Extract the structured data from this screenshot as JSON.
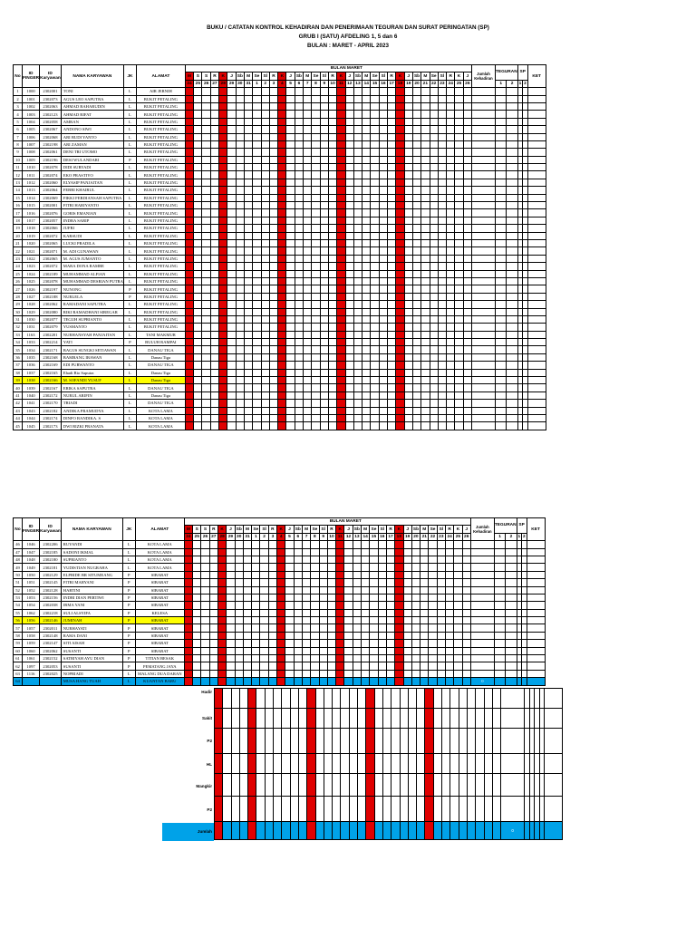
{
  "header": {
    "line1": "BUKU / CATATAN KONTROL KEHADIRAN DAN PENERIMAAN TEGURAN DAN SURAT PERINGATAN (SP)",
    "line2": "GRUB I (SATU) AFDELING 1, 5 dan 6",
    "line3": "BULAN : MARET - APRIL 2023"
  },
  "columns": {
    "no": "No",
    "id_finger": "ID FINGER",
    "id_karyawan": "ID Karyawan",
    "nama": "NAMA KARYAWAN",
    "jk": "JK",
    "alamat": "ALAMAT",
    "bulan": "BULAN MARET",
    "jumlah": "Jumlah Kehadiran",
    "teguran": "TEGURAN",
    "sp": "SP",
    "ket": "KET",
    "teguran_nums": [
      "1",
      "2"
    ],
    "sp_nums": [
      "1",
      "2"
    ]
  },
  "days": [
    "M",
    "S",
    "S",
    "R",
    "K",
    "J",
    "Sb",
    "M",
    "Se",
    "Sl",
    "R",
    "K",
    "J",
    "Sb",
    "M",
    "Se",
    "Sl",
    "R",
    "K",
    "J",
    "Sb",
    "M",
    "Se",
    "Sl",
    "R",
    "K",
    "J",
    "Sb",
    "M",
    "Se",
    "Sl",
    "R",
    "K",
    "J"
  ],
  "dates": [
    "24",
    "25",
    "26",
    "27",
    "28",
    "29",
    "30",
    "31",
    "1",
    "2",
    "3",
    "4",
    "5",
    "6",
    "7",
    "8",
    "9",
    "10",
    "11",
    "12",
    "13",
    "14",
    "15",
    "16",
    "17",
    "18",
    "19",
    "20",
    "21",
    "22",
    "23",
    "24",
    "25",
    "26"
  ],
  "red_cols": [
    0,
    4,
    11,
    18,
    25
  ],
  "employees_page1": [
    [
      "1",
      "1000",
      "2302001",
      "TONI",
      "L",
      "AIR JERNIH"
    ],
    [
      "2",
      "1001",
      "2302073",
      "AGUS LEO SAPUTRA",
      "L",
      "BUKIT PETALING"
    ],
    [
      "3",
      "1002",
      "2302063",
      "AHMAD BAHARUDIN",
      "L",
      "BUKIT PETALING"
    ],
    [
      "4",
      "1003",
      "2302123",
      "AHMAD RIFAT",
      "L",
      "BUKIT PETALING"
    ],
    [
      "5",
      "1004",
      "2302058",
      "AMRAN",
      "L",
      "BUKIT PETALING"
    ],
    [
      "6",
      "1005",
      "2302067",
      "ANDONO SIWI",
      "L",
      "BUKIT PETALING"
    ],
    [
      "7",
      "1006",
      "2302068",
      "ARI BUDI YANTO",
      "L",
      "BUKIT PETALING"
    ],
    [
      "8",
      "1007",
      "2302198",
      "ARI ZAMAN",
      "L",
      "BUKIT PETALING"
    ],
    [
      "9",
      "1008",
      "2302061",
      "DENI TRI UTOMO",
      "L",
      "BUKIT PETALING"
    ],
    [
      "10",
      "1009",
      "2302196",
      "DESI WULANDARI",
      "P",
      "BUKIT PETALING"
    ],
    [
      "11",
      "1010",
      "2302078",
      "DIDI SURYADI",
      "L",
      "BUKIT PETALING"
    ],
    [
      "12",
      "1011",
      "2302074",
      "EKO PRASTIYO",
      "L",
      "BUKIT PETALING"
    ],
    [
      "13",
      "1012",
      "2302060",
      "ELYASIP PANJAITAN",
      "L",
      "BUKIT PETALING"
    ],
    [
      "14",
      "1013",
      "2302064",
      "FEBRI KHAIRUL",
      "L",
      "BUKIT PETALING"
    ],
    [
      "15",
      "1014",
      "2302069",
      "FIKKI FERDIANSAH SAPUTRA",
      "L",
      "BUKIT PETALING"
    ],
    [
      "16",
      "1015",
      "2302001",
      "FITRI HARIYANTO",
      "L",
      "BUKIT PETALING"
    ],
    [
      "17",
      "1016",
      "2302076",
      "GORIS EMANIAN",
      "L",
      "BUKIT PETALING"
    ],
    [
      "18",
      "1017",
      "2302057",
      "INDRA SARIP",
      "L",
      "BUKIT PETALING"
    ],
    [
      "19",
      "1018",
      "2302066",
      "JUFRI",
      "L",
      "BUKIT PETALING"
    ],
    [
      "20",
      "1019",
      "2302072",
      "KARSUDI",
      "L",
      "BUKIT PETALING"
    ],
    [
      "21",
      "1020",
      "2302065",
      "LUCKI PRADILA",
      "L",
      "BUKIT PETALING"
    ],
    [
      "22",
      "1021",
      "2302071",
      "M. ADI GUNAWAN",
      "L",
      "BUKIT PETALING"
    ],
    [
      "23",
      "1022",
      "2302065",
      "M. AGUS JUMANTO",
      "L",
      "BUKIT PETALING"
    ],
    [
      "24",
      "1023",
      "2302072",
      "MARA DONA RAMBE",
      "L",
      "BUKIT PETALING"
    ],
    [
      "25",
      "1024",
      "2302189",
      "MUHAMMAD ALFIAN",
      "L",
      "BUKIT PETALING"
    ],
    [
      "26",
      "1025",
      "2302078",
      "MUHAMMAD DESRIAN PUTRA",
      "L",
      "BUKIT PETALING"
    ],
    [
      "27",
      "1026",
      "2302197",
      "NUNONG",
      "P",
      "BUKIT PETALING"
    ],
    [
      "28",
      "1027",
      "2302188",
      "NURLELA",
      "P",
      "BUKIT PETALING"
    ],
    [
      "29",
      "1028",
      "2302062",
      "RAMADANI SAPUTRA",
      "L",
      "BUKIT PETALING"
    ],
    [
      "30",
      "1029",
      "2302080",
      "RIKI RAMADHANI SIREGAR",
      "L",
      "BUKIT PETALING"
    ],
    [
      "31",
      "1030",
      "2302077",
      "TEGUH SUPRIANTO",
      "L",
      "BUKIT PETALING"
    ],
    [
      "32",
      "1031",
      "2302079",
      "YUSMANTO",
      "L",
      "BUKIT PETALING"
    ],
    [
      "33",
      "1163",
      "2302201",
      "NURHANSYAH PANJAITAN",
      "L",
      "TANI MAKMUR"
    ],
    [
      "34",
      "1033",
      "2302214",
      "YATI",
      "P",
      "BULUH RAMPAI"
    ],
    [
      "35",
      "1034",
      "2302171",
      "BAGUS SUNGKI SETIAWAN",
      "L",
      "DANAU TIGA"
    ],
    [
      "36",
      "1035",
      "2302168",
      "BAMBANG IRAWAN",
      "L",
      "Danau Tiga"
    ],
    [
      "37",
      "1036",
      "2302169",
      "EDI PURWANTO",
      "L",
      "DANAU TIGA"
    ],
    [
      "38",
      "1037",
      "2302165",
      "Ehadi Rio Saputra",
      "L",
      "Danau Tiga"
    ],
    [
      "39",
      "1038",
      "2302166",
      "M. SOFANDI YUSUF",
      "L",
      "Danau Tiga"
    ],
    [
      "40",
      "1039",
      "2302167",
      "ERIKA SAPUTRA",
      "L",
      "DANAU TIGA"
    ],
    [
      "41",
      "1040",
      "2302172",
      "NURUL ARIFIN",
      "L",
      "Danau Tiga"
    ],
    [
      "42",
      "1041",
      "2302170",
      "TRIADI",
      "L",
      "DANAU TIGA"
    ],
    [
      "43",
      "1043",
      "2302182",
      "ANDIKA PRAMUDYA",
      "L",
      "KOTA LAMA"
    ],
    [
      "44",
      "1044",
      "2302174",
      "DINFO RANDIKA. S",
      "L",
      "KOTA LAMA"
    ],
    [
      "45",
      "1045",
      "2302173",
      "DWI RIZKI PRANATA",
      "L",
      "KOTA LAMA"
    ]
  ],
  "employees_page2": [
    [
      "46",
      "1046",
      "2302206",
      "RUYANDI",
      "L",
      "KOTA LAMA"
    ],
    [
      "47",
      "1047",
      "2302185",
      "SADONI IKMAL",
      "L",
      "KOTA LAMA"
    ],
    [
      "48",
      "1048",
      "2302180",
      "SUPRIANTO",
      "L",
      "KOTA LAMA"
    ],
    [
      "49",
      "1049",
      "2302181",
      "YUDISTIAN NUGRAHA",
      "L",
      "KOTA LAMA"
    ],
    [
      "50",
      "1050",
      "2302129",
      "ELPRIDE BR SITUMEANG",
      "P",
      "SIBABAT"
    ],
    [
      "51",
      "1051",
      "2302145",
      "FITRI MARYANI",
      "P",
      "SIBABAT"
    ],
    [
      "52",
      "1052",
      "2302128",
      "HARTINI",
      "P",
      "SIBABAT"
    ],
    [
      "53",
      "1053",
      "2302156",
      "INDRI DIAN PERTIWI",
      "P",
      "SIBABAT"
    ],
    [
      "54",
      "1054",
      "2302038",
      "IRMA YANI",
      "P",
      "SIBABAT"
    ],
    [
      "55",
      "1062",
      "2302218",
      "SULI ALSYIFA",
      "P",
      "KELESA"
    ],
    [
      "56",
      "1056",
      "2302146",
      "JUMINAH",
      "P",
      "SIBABAT"
    ],
    [
      "57",
      "1057",
      "2302011",
      "NURHAYATI",
      "P",
      "SIBABAT"
    ],
    [
      "58",
      "1058",
      "2302148",
      "RAMA DANI",
      "P",
      "SIBABAT"
    ],
    [
      "59",
      "1059",
      "2302147",
      "SITI AISAH",
      "P",
      "SIBABAT"
    ],
    [
      "60",
      "1060",
      "2302062",
      "SUSANTI",
      "P",
      "SIBABAT"
    ],
    [
      "61",
      "1061",
      "2302152",
      "SATRIYAH AYU DIAN",
      "P",
      "TITIAN BESAK"
    ],
    [
      "62",
      "1097",
      "2302053",
      "SUSANTI",
      "P",
      "PEMATANG JAYA"
    ],
    [
      "63",
      "1116",
      "2302025",
      "NOPRIADI",
      "L",
      "MALANG DUA DARAN"
    ],
    [
      "64",
      "",
      "",
      "MUSA HANG TUAH",
      "L",
      "KUANTAN BARU"
    ]
  ],
  "blue_total": "0",
  "summary_labels": [
    "Hadir",
    "Sakit",
    "P2",
    "HL",
    "Mangkir",
    "P2",
    "Jumlah"
  ],
  "summary_total": "0"
}
